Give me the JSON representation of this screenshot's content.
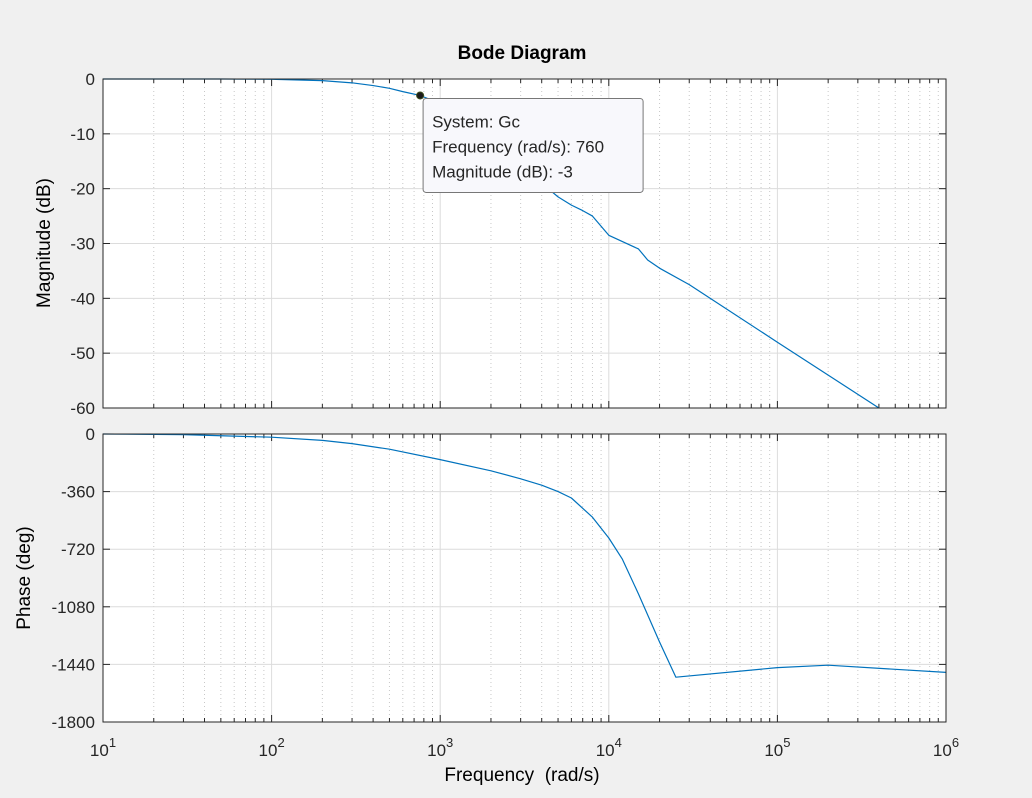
{
  "chart_data": {
    "type": "line",
    "title": "Bode Diagram",
    "xlabel": "Frequency  (rad/s)",
    "x_scale": "log",
    "xlim": [
      10,
      1000000
    ],
    "x_ticks": [
      {
        "value": 10,
        "base": "10",
        "exp": "1"
      },
      {
        "value": 100,
        "base": "10",
        "exp": "2"
      },
      {
        "value": 1000,
        "base": "10",
        "exp": "3"
      },
      {
        "value": 10000,
        "base": "10",
        "exp": "4"
      },
      {
        "value": 100000,
        "base": "10",
        "exp": "5"
      },
      {
        "value": 1000000,
        "base": "10",
        "exp": "6"
      }
    ],
    "grid": true,
    "colors": {
      "line": "#0072bd",
      "grid": "#dcdcdc",
      "axes": "#262626",
      "background": "#ffffff",
      "figure": "#f0f0f0"
    },
    "subplots": [
      {
        "ylabel": "Magnitude (dB)",
        "ylim": [
          -60,
          0
        ],
        "y_ticks": [
          {
            "value": 0,
            "label": "0"
          },
          {
            "value": -10,
            "label": "-10"
          },
          {
            "value": -20,
            "label": "-20"
          },
          {
            "value": -30,
            "label": "-30"
          },
          {
            "value": -40,
            "label": "-40"
          },
          {
            "value": -50,
            "label": "-50"
          },
          {
            "value": -60,
            "label": "-60"
          }
        ],
        "series": [
          {
            "x": [
              10,
              50,
              100,
              200,
              300,
              400,
              500,
              600,
              760,
              1000,
              1500,
              2000,
              3000,
              4000,
              5000,
              6000,
              7000,
              8000,
              10000,
              15000,
              17000,
              20000,
              30000,
              100000,
              400000
            ],
            "y": [
              0,
              0,
              -0.05,
              -0.3,
              -0.7,
              -1.2,
              -1.7,
              -2.3,
              -3,
              -4.5,
              -7.5,
              -10,
              -14.5,
              -19,
              -21.5,
              -23,
              -24,
              -25,
              -28.5,
              -31,
              -33,
              -34.5,
              -37.5,
              -48,
              -60
            ]
          }
        ]
      },
      {
        "ylabel": "Phase (deg)",
        "ylim": [
          -1800,
          0
        ],
        "y_ticks": [
          {
            "value": 0,
            "label": "0"
          },
          {
            "value": -360,
            "label": "-360"
          },
          {
            "value": -720,
            "label": "-720"
          },
          {
            "value": -1080,
            "label": "-1080"
          },
          {
            "value": -1440,
            "label": "-1440"
          },
          {
            "value": -1800,
            "label": "-1800"
          }
        ],
        "series": [
          {
            "x": [
              10,
              30,
              100,
              200,
              300,
              500,
              1000,
              2000,
              3000,
              4000,
              5000,
              6000,
              8000,
              10000,
              12000,
              15000,
              20000,
              25000,
              100000,
              200000,
              1000000
            ],
            "y": [
              0,
              -4,
              -20,
              -40,
              -60,
              -95,
              -160,
              -230,
              -280,
              -320,
              -360,
              -400,
              -520,
              -650,
              -780,
              -1000,
              -1300,
              -1520,
              -1460,
              -1445,
              -1490
            ]
          }
        ]
      }
    ],
    "datatip": {
      "x": 760,
      "y": -3,
      "lines": [
        "System: Gc",
        "Frequency (rad/s): 760",
        "Magnitude (dB): -3"
      ]
    }
  }
}
